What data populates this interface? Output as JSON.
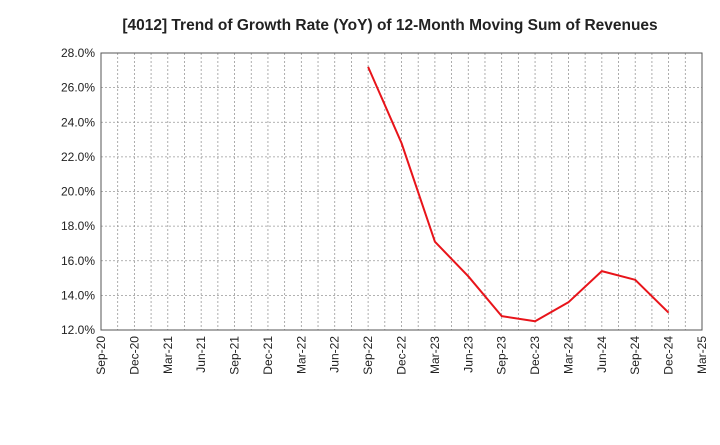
{
  "chart_data": {
    "type": "line",
    "title": "[4012]  Trend of Growth Rate (YoY) of 12-Month Moving Sum of Revenues",
    "xlabel": "",
    "ylabel": "",
    "x_ticks": [
      "Sep-20",
      "Dec-20",
      "Mar-21",
      "Jun-21",
      "Sep-21",
      "Dec-21",
      "Mar-22",
      "Jun-22",
      "Sep-22",
      "Dec-22",
      "Mar-23",
      "Jun-23",
      "Sep-23",
      "Dec-23",
      "Mar-24",
      "Jun-24",
      "Sep-24",
      "Dec-24",
      "Mar-25"
    ],
    "y_ticks": [
      "12.0%",
      "14.0%",
      "16.0%",
      "18.0%",
      "20.0%",
      "22.0%",
      "24.0%",
      "26.0%",
      "28.0%"
    ],
    "ylim": [
      12.0,
      28.0
    ],
    "grid": true,
    "series": [
      {
        "color": "#e8141a",
        "x": [
          "Sep-22",
          "Dec-22",
          "Mar-23",
          "Jun-23",
          "Sep-23",
          "Dec-23",
          "Mar-24",
          "Jun-24",
          "Sep-24",
          "Dec-24"
        ],
        "values": [
          27.2,
          22.8,
          17.1,
          15.1,
          12.8,
          12.5,
          13.6,
          15.4,
          14.9,
          13.0
        ]
      }
    ]
  }
}
